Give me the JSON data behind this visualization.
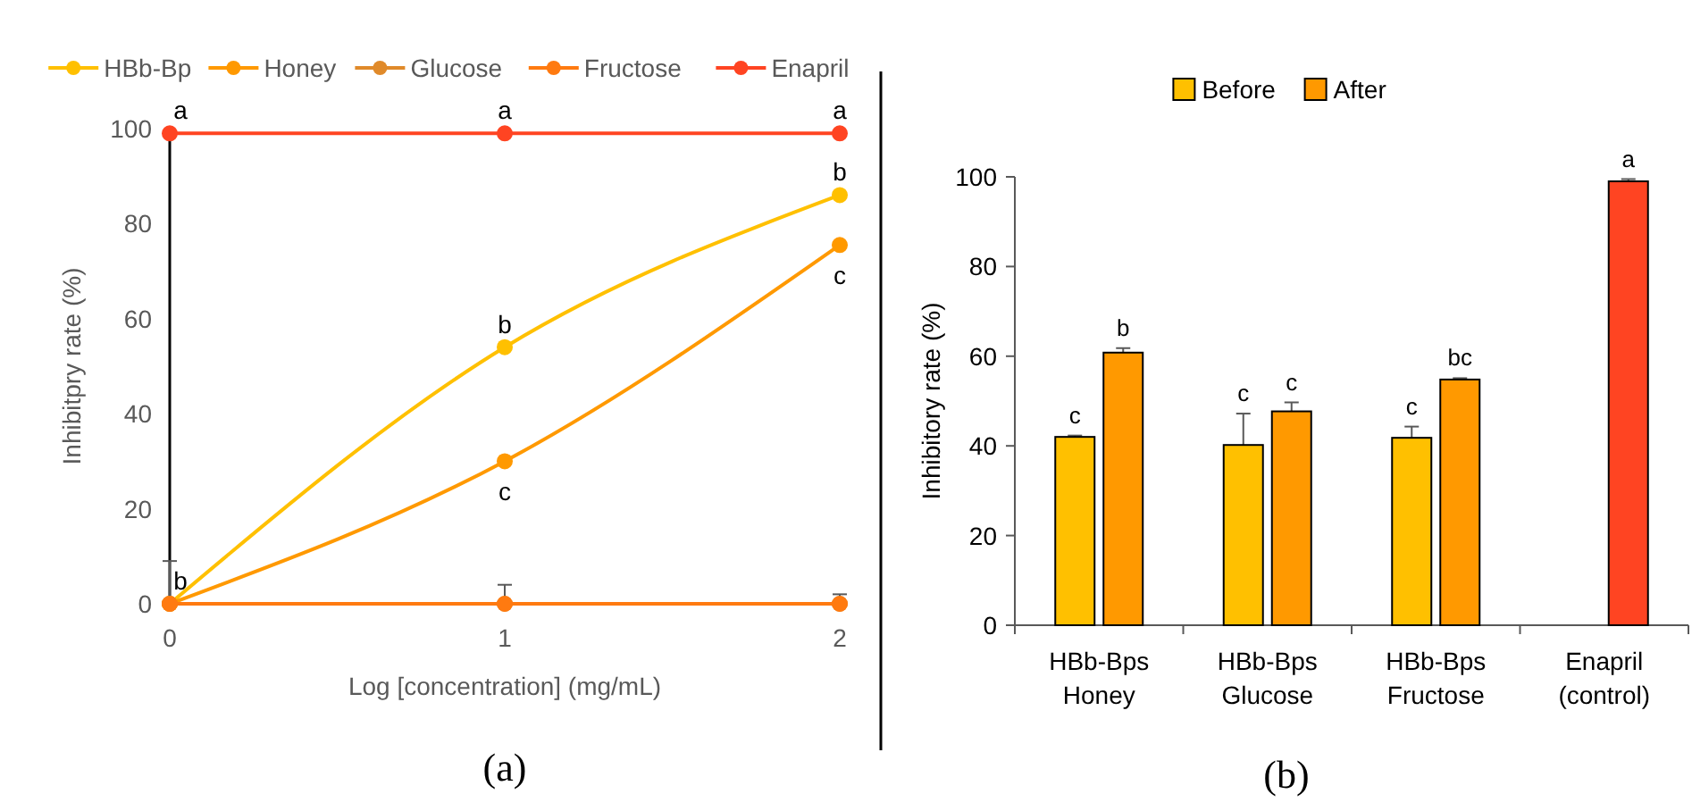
{
  "chart_data": [
    {
      "type": "line",
      "xlabel": "Log [concentration] (mg/mL)",
      "ylabel": "Inhibitpry rate (%)",
      "x": [
        0,
        1,
        2
      ],
      "xlim": [
        0,
        2
      ],
      "xticks": [
        0,
        1,
        2
      ],
      "ylim": [
        0,
        100
      ],
      "yticks": [
        0,
        20,
        40,
        60,
        80,
        100
      ],
      "grid": false,
      "legend": "top",
      "marker": "circle",
      "line_style": "solid",
      "series": [
        {
          "name": "HBb-Bp",
          "color": "#ffc000",
          "values": [
            0,
            54,
            86
          ]
        },
        {
          "name": "Honey",
          "color": "#ff9900",
          "values": [
            0,
            30,
            75.5
          ]
        },
        {
          "name": "Glucose",
          "color": "#e08a2a",
          "values": [
            0,
            0,
            0
          ],
          "errors": [
            [
              0,
              9
            ],
            [
              0,
              4
            ],
            [
              0,
              2
            ]
          ]
        },
        {
          "name": "Fructose",
          "color": "#ff7a10",
          "values": [
            0,
            0,
            0
          ]
        },
        {
          "name": "Enapril",
          "color": "#ff4422",
          "values": [
            99,
            99,
            99
          ]
        }
      ],
      "annotations": [
        {
          "text": "a",
          "x": 0,
          "y": 99
        },
        {
          "text": "a",
          "x": 1,
          "y": 99
        },
        {
          "text": "a",
          "x": 2,
          "y": 99
        },
        {
          "text": "b",
          "x": 0,
          "y": 0
        },
        {
          "text": "b",
          "x": 1,
          "y": 54
        },
        {
          "text": "c",
          "x": 1,
          "y": 30
        },
        {
          "text": "b",
          "x": 2,
          "y": 86
        },
        {
          "text": "c",
          "x": 2,
          "y": 75.5
        },
        "(a)"
      ]
    },
    {
      "type": "bar",
      "ylabel": "Inhibitory rate (%)",
      "categories": [
        "HBb-Bps\nHoney",
        "HBb-Bps\nGlucose",
        "HBb-Bps\nFructose",
        "Enapril\n(control)"
      ],
      "ylim": [
        0,
        100
      ],
      "yticks": [
        0,
        20,
        40,
        60,
        80,
        100
      ],
      "grid": false,
      "legend": "top",
      "series": [
        {
          "name": "Before",
          "color": "#ffc000",
          "values": [
            42,
            40.2,
            41.8,
            null
          ],
          "errors": [
            0.3,
            7,
            2.5,
            null
          ]
        },
        {
          "name": "After",
          "color": "#ff9900",
          "colors": [
            "#ff9900",
            "#ff9900",
            "#ff9900",
            "#ff4422"
          ],
          "values": [
            60.8,
            47.7,
            54.8,
            99
          ],
          "errors": [
            1,
            2,
            0.3,
            0.5
          ]
        }
      ],
      "annotations": [
        {
          "text": "c",
          "x": "HBb-Bps\nHoney",
          "y": 42
        },
        {
          "text": "b",
          "x": "HBb-Bps\nHoney",
          "y": 60.8
        },
        {
          "text": "c",
          "x": "HBb-Bps\nGlucose",
          "y": 40.2
        },
        {
          "text": "c",
          "x": "HBb-Bps\nGlucose",
          "y": 47.7
        },
        {
          "text": "c",
          "x": "HBb-Bps\nFructose",
          "y": 41.8
        },
        {
          "text": "bc",
          "x": "HBb-Bps\nFructose",
          "y": 54.8
        },
        {
          "text": "a",
          "x": "Enapril\n(control)",
          "y": 99
        },
        "(b)"
      ]
    }
  ]
}
